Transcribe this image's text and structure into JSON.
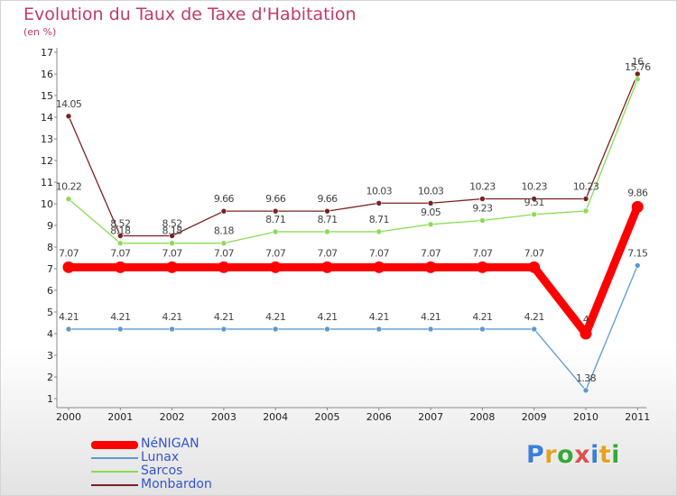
{
  "title": "Evolution du Taux de Taxe d'Habitation",
  "subtitle": "(en %)",
  "logo": "Proxiti",
  "colors": {
    "title": "#c03a6a",
    "legend_text": "#3355cc"
  },
  "chart_data": {
    "type": "line",
    "x": [
      "2000",
      "2001",
      "2002",
      "2003",
      "2004",
      "2005",
      "2006",
      "2007",
      "2008",
      "2009",
      "2010",
      "2011"
    ],
    "ylim": [
      1,
      17
    ],
    "y_ticks": [
      1,
      2,
      3,
      4,
      5,
      6,
      7,
      8,
      9,
      10,
      11,
      12,
      13,
      14,
      15,
      16,
      17
    ],
    "grid": false,
    "legend_position": "bottom-left",
    "series": [
      {
        "name": "NéNIGAN",
        "color": "#ff0000",
        "values": [
          7.07,
          7.07,
          7.07,
          7.07,
          7.07,
          7.07,
          7.07,
          7.07,
          7.07,
          7.07,
          4,
          9.86
        ],
        "labels": [
          "7.07",
          "7.07",
          "7.07",
          "7.07",
          "7.07",
          "7.07",
          "7.07",
          "7.07",
          "7.07",
          "7.07",
          "4",
          "9.86"
        ]
      },
      {
        "name": "Lunax",
        "color": "#5a9ad2",
        "values": [
          4.21,
          4.21,
          4.21,
          4.21,
          4.21,
          4.21,
          4.21,
          4.21,
          4.21,
          4.21,
          1.38,
          7.15
        ],
        "labels": [
          "4.21",
          "4.21",
          "4.21",
          "4.21",
          "4.21",
          "4.21",
          "4.21",
          "4.21",
          "4.21",
          "4.21",
          "1.38",
          "7.15"
        ]
      },
      {
        "name": "Sarcos",
        "color": "#88dd55",
        "values": [
          10.22,
          8.18,
          8.18,
          8.18,
          8.71,
          8.71,
          8.71,
          9.05,
          9.23,
          9.51,
          9.67,
          15.76
        ],
        "labels": [
          "10.22",
          "8.18",
          "8.18",
          "8.18",
          "8.71",
          "8.71",
          "8.71",
          "9.05",
          "9.23",
          "9.51",
          "",
          "15.76"
        ]
      },
      {
        "name": "Monbardon",
        "color": "#7a2020",
        "values": [
          14.05,
          8.52,
          8.52,
          9.66,
          9.66,
          9.66,
          10.03,
          10.03,
          10.23,
          10.23,
          10.23,
          16
        ],
        "labels": [
          "14.05",
          "8.52",
          "8.52",
          "9.66",
          "9.66",
          "9.66",
          "10.03",
          "10.03",
          "10.23",
          "10.23",
          "10.23",
          "16"
        ]
      }
    ]
  }
}
